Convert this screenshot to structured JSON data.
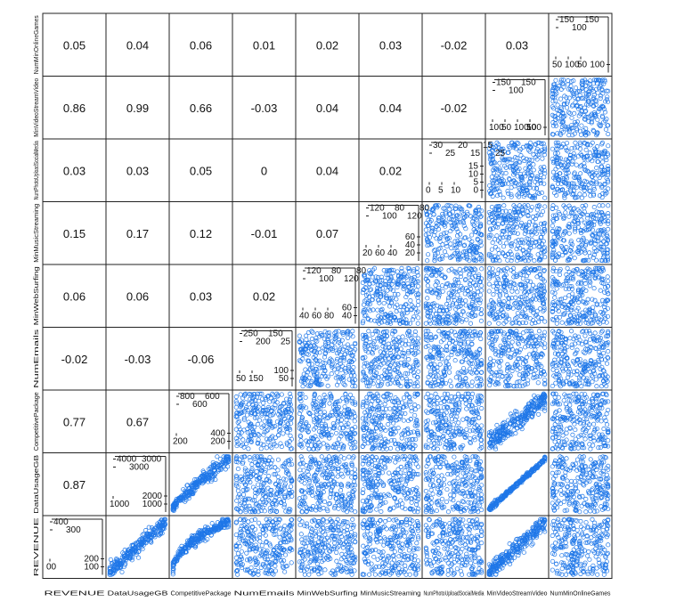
{
  "chart_data": {
    "type": "scatter",
    "variables": [
      "REVENUE",
      "DataUsageGB",
      "CompetitivePackage",
      "NumEmails",
      "MinWebSurfing",
      "MinMusicStreaming",
      "NumPhotoUploadSocialMedia",
      "MinVideoStreamVideo",
      "NumMinOnlineGames"
    ],
    "x_labels": [
      "REVENUE",
      "DataUsageGB",
      "CompetitivePackage",
      "NumEmails",
      "MinWebSurfing",
      "MinMusicStreaming",
      "NumPhotoUploadSocialMedia",
      "MinVideoStreamVideo",
      "NumMinOnlineGames"
    ],
    "y_labels": [
      "REVENUE",
      "DataUsageGB",
      "CompetitivePackage",
      "NumEmails",
      "MinWebSurfing",
      "MinMusicStreaming",
      "NumPhotoUploadSocialMedia",
      "MinVideoStreamVideo",
      "NumMinOnlineGames"
    ],
    "correlations": [
      [
        "0.87",
        "0.77",
        "-0.02",
        "0.06",
        "0.15",
        "0.03",
        "0.86",
        "0.05"
      ],
      [
        "0.67",
        "-0.03",
        "0.06",
        "0.17",
        "0.03",
        "0.99",
        "0.04"
      ],
      [
        "-0.06",
        "0.03",
        "0.12",
        "0.05",
        "0.66",
        "0.06"
      ],
      [
        "0.02",
        "-0.01",
        "0",
        "-0.03",
        "0.01"
      ],
      [
        "0.07",
        "0.04",
        "0.04",
        "0.02"
      ],
      [
        "0.02",
        "0.04",
        "0.03"
      ],
      [
        "-0.02",
        "-0.02"
      ],
      [
        "0.03"
      ]
    ],
    "diagonal_ticks": [
      {
        "top": [
          "400",
          "300"
        ],
        "left": [
          "00"
        ],
        "right": [
          "200",
          "100"
        ]
      },
      {
        "top": [
          "4000",
          "3000",
          "3000"
        ],
        "left": [
          "1000"
        ],
        "right": [
          "2000",
          "1000"
        ]
      },
      {
        "top": [
          "800",
          "600",
          "600"
        ],
        "left": [
          "200"
        ],
        "right": [
          "400",
          "200"
        ]
      },
      {
        "top": [
          "250",
          "200",
          "150",
          "25"
        ],
        "left": [
          "50",
          "150"
        ],
        "right": [
          "100",
          "50"
        ]
      },
      {
        "top": [
          "120",
          "100",
          "80",
          "120",
          "80"
        ],
        "left": [
          "40",
          "60",
          "80"
        ],
        "right": [
          "60",
          "40"
        ]
      },
      {
        "top": [
          "120",
          "100",
          "80",
          "120",
          "80"
        ],
        "left": [
          "20",
          "60",
          "40"
        ],
        "right": [
          "60",
          "40",
          "20"
        ]
      },
      {
        "top": [
          "30",
          "25",
          "20",
          "15",
          "15",
          "25"
        ],
        "left": [
          "0",
          "5",
          "10"
        ],
        "right": [
          "15",
          "10",
          "5",
          "0"
        ]
      },
      {
        "top": [
          "150",
          "100",
          "150"
        ],
        "left": [
          "100",
          "50",
          "100",
          "50"
        ],
        "right": [
          "100"
        ]
      },
      {
        "top": [
          "150",
          "100",
          "150"
        ],
        "left": [
          "50",
          "100",
          "50"
        ],
        "right": [
          "100"
        ]
      }
    ],
    "point_color": "#1f77e8",
    "scatter_relationships": {
      "REVENUE~DataUsageGB": "strong positive linear",
      "REVENUE~CompetitivePackage": "strong positive, curved",
      "REVENUE~MinVideoStreamVideo": "strong positive linear",
      "DataUsageGB~CompetitivePackage": "positive, fanning",
      "DataUsageGB~MinVideoStreamVideo": "near perfect linear",
      "CompetitivePackage~MinVideoStreamVideo": "positive linear",
      "other_pairs": "no relationship (uniform cloud)"
    },
    "title": "",
    "xlabel": "",
    "ylabel": "",
    "grid": false,
    "legend": "none"
  }
}
